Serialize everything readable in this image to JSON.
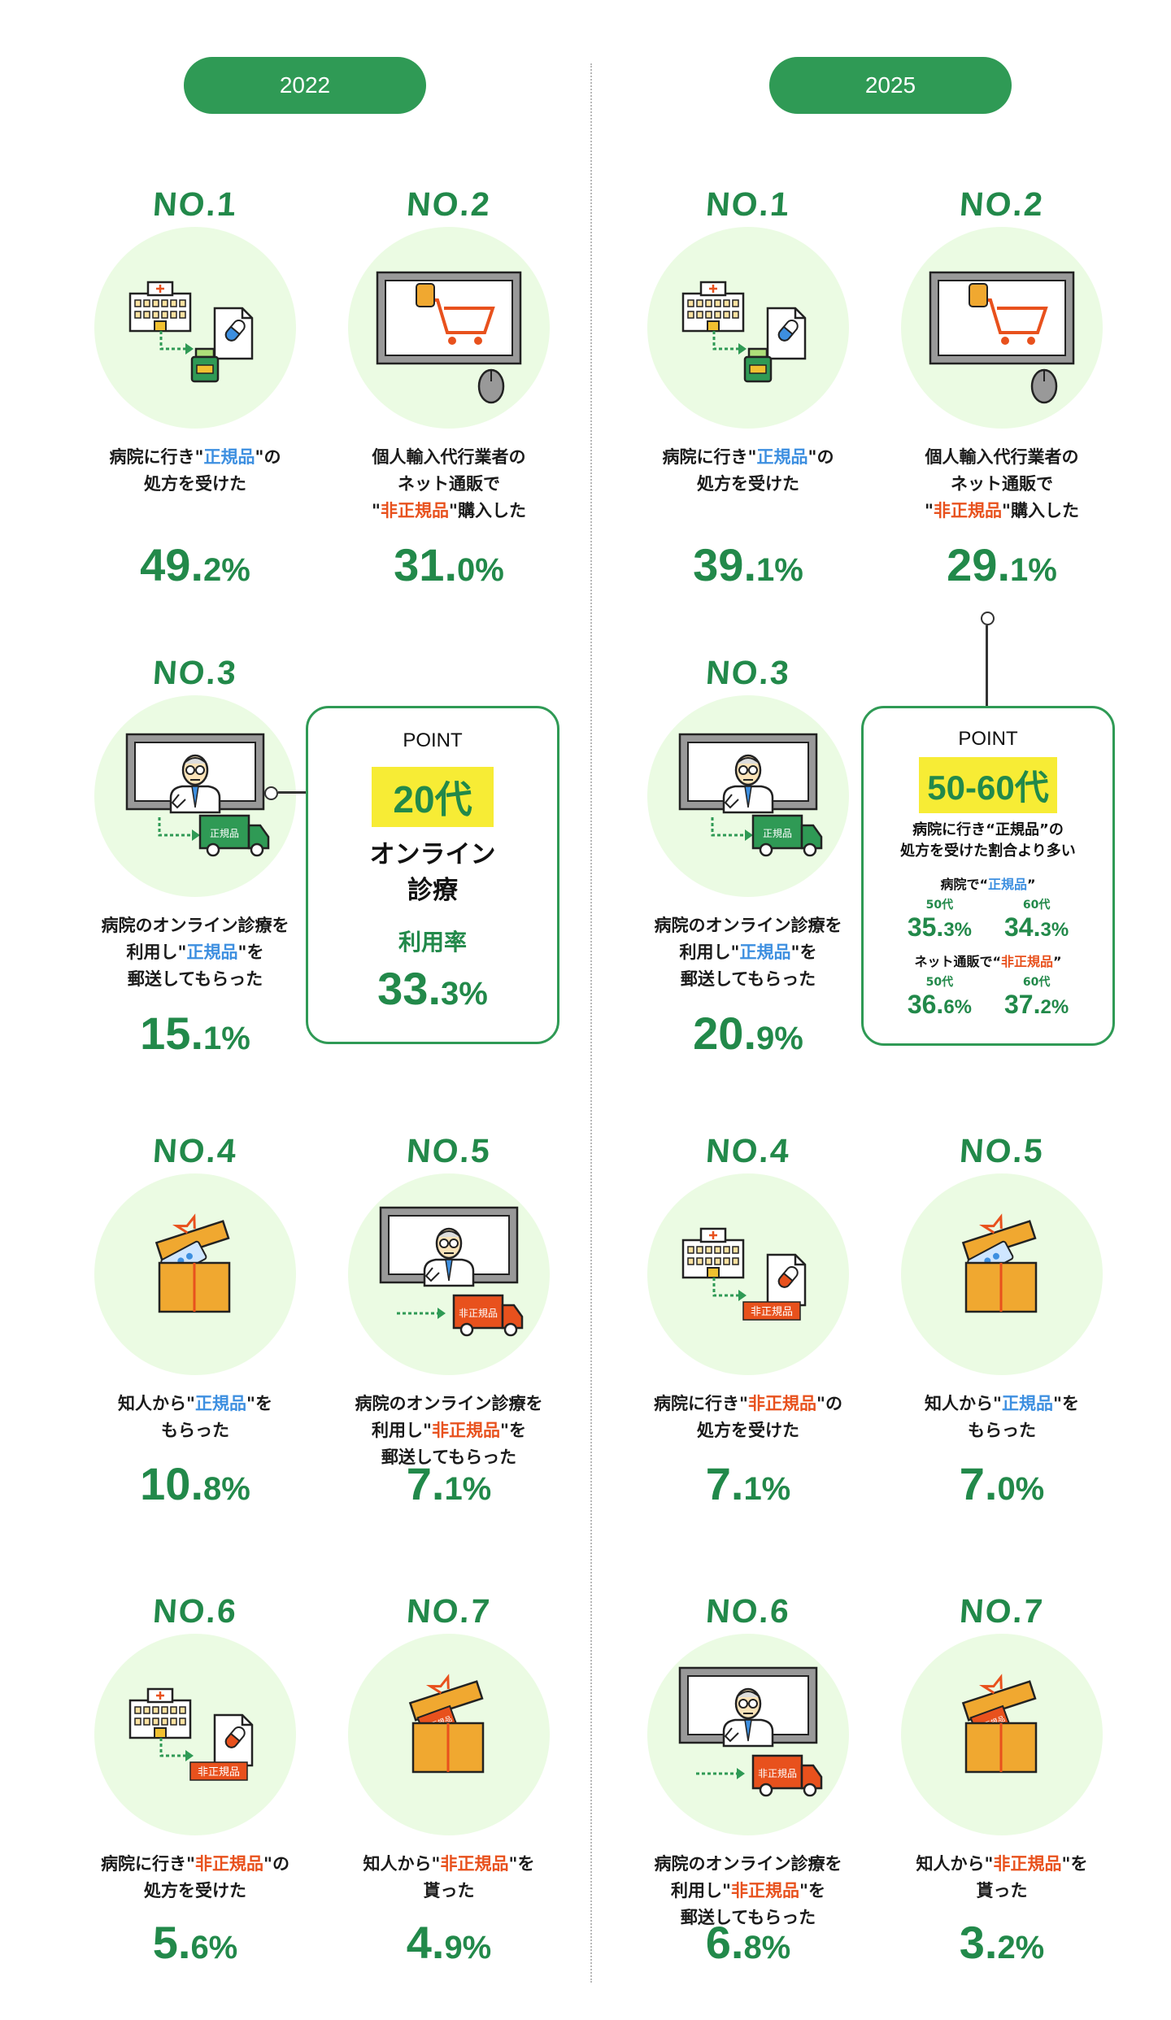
{
  "years": {
    "left": "2022",
    "right": "2025"
  },
  "left": {
    "items": [
      {
        "rank": "NO.1",
        "icon": "hospital-prescription-icon",
        "desc": [
          "病院に行き\"",
          {
            "t": "正規品",
            "c": "blue"
          },
          "\"の",
          "\n",
          "処方を受けた"
        ],
        "value_int": "49.",
        "value_dec": "2%"
      },
      {
        "rank": "NO.2",
        "icon": "monitor-cart-icon",
        "desc": [
          "個人輸入代行業者の",
          "\n",
          "ネット通販で",
          "\n",
          "\"",
          {
            "t": "非正規品",
            "c": "red"
          },
          "\"購入した"
        ],
        "value_int": "31.",
        "value_dec": "0%"
      },
      {
        "rank": "NO.3",
        "icon": "online-doctor-genuine-icon",
        "desc": [
          "病院のオンライン診療を",
          "\n",
          "利用し\"",
          {
            "t": "正規品",
            "c": "blue"
          },
          "\"を",
          "\n",
          "郵送してもらった"
        ],
        "value_int": "15.",
        "value_dec": "1%"
      },
      {
        "rank": "NO.4",
        "icon": "gift-box-icon",
        "desc": [
          "知人から\"",
          {
            "t": "正規品",
            "c": "blue"
          },
          "\"を",
          "\n",
          "もらった"
        ],
        "value_int": "10.",
        "value_dec": "8%"
      },
      {
        "rank": "NO.5",
        "icon": "online-doctor-nongenuine-icon",
        "desc": [
          "病院のオンライン診療を",
          "\n",
          "利用し\"",
          {
            "t": "非正規品",
            "c": "red"
          },
          "\"を",
          "\n",
          "郵送してもらった"
        ],
        "value_int": "7.",
        "value_dec": "1%"
      },
      {
        "rank": "NO.6",
        "icon": "hospital-nongenuine-icon",
        "desc": [
          "病院に行き\"",
          {
            "t": "非正規品",
            "c": "red"
          },
          "\"の",
          "\n",
          "処方を受けた"
        ],
        "value_int": "5.",
        "value_dec": "6%"
      },
      {
        "rank": "NO.7",
        "icon": "gift-nongenuine-icon",
        "desc": [
          "知人から\"",
          {
            "t": "非正規品",
            "c": "red"
          },
          "\"を",
          "\n",
          "貰った"
        ],
        "value_int": "4.",
        "value_dec": "9%"
      }
    ],
    "point": {
      "title": "POINT",
      "highlight": "20代",
      "line1": "オンライン",
      "line2": "診療",
      "rate_label": "利用率",
      "rate_int": "33.",
      "rate_dec": "3%"
    }
  },
  "right": {
    "items": [
      {
        "rank": "NO.1",
        "icon": "hospital-prescription-icon",
        "desc": [
          "病院に行き\"",
          {
            "t": "正規品",
            "c": "blue"
          },
          "\"の",
          "\n",
          "処方を受けた"
        ],
        "value_int": "39.",
        "value_dec": "1%"
      },
      {
        "rank": "NO.2",
        "icon": "monitor-cart-icon",
        "desc": [
          "個人輸入代行業者の",
          "\n",
          "ネット通販で",
          "\n",
          "\"",
          {
            "t": "非正規品",
            "c": "red"
          },
          "\"購入した"
        ],
        "value_int": "29.",
        "value_dec": "1%"
      },
      {
        "rank": "NO.3",
        "icon": "online-doctor-genuine-icon",
        "desc": [
          "病院のオンライン診療を",
          "\n",
          "利用し\"",
          {
            "t": "正規品",
            "c": "blue"
          },
          "\"を",
          "\n",
          "郵送してもらった"
        ],
        "value_int": "20.",
        "value_dec": "9%"
      },
      {
        "rank": "NO.4",
        "icon": "hospital-nongenuine-doc-icon",
        "desc": [
          "病院に行き\"",
          {
            "t": "非正規品",
            "c": "red"
          },
          "\"の",
          "\n",
          "処方を受けた"
        ],
        "value_int": "7.",
        "value_dec": "1%"
      },
      {
        "rank": "NO.5",
        "icon": "gift-box-icon",
        "desc": [
          "知人から\"",
          {
            "t": "正規品",
            "c": "blue"
          },
          "\"を",
          "\n",
          "もらった"
        ],
        "value_int": "7.",
        "value_dec": "0%"
      },
      {
        "rank": "NO.6",
        "icon": "online-doctor-nongenuine-icon",
        "desc": [
          "病院のオンライン診療を",
          "\n",
          "利用し\"",
          {
            "t": "非正規品",
            "c": "red"
          },
          "\"を",
          "\n",
          "郵送してもらった"
        ],
        "value_int": "6.",
        "value_dec": "8%"
      },
      {
        "rank": "NO.7",
        "icon": "gift-nongenuine-icon",
        "desc": [
          "知人から\"",
          {
            "t": "非正規品",
            "c": "red"
          },
          "\"を",
          "\n",
          "貰った"
        ],
        "value_int": "3.",
        "value_dec": "2%"
      }
    ],
    "point": {
      "title": "POINT",
      "highlight": "50-60代",
      "sub1": "病院に行き“正規品”の",
      "sub2": "処方を受けた割合より多い",
      "genuine_label": [
        "病院で“",
        {
          "t": "正規品",
          "c": "blue"
        },
        "”"
      ],
      "nongenuine_label": [
        "ネット通販で“",
        {
          "t": "非正規品",
          "c": "red"
        },
        "”"
      ],
      "age_50": "50代",
      "age_60": "60代",
      "g50_int": "35.",
      "g50_dec": "3%",
      "g60_int": "34.",
      "g60_dec": "3%",
      "n50_int": "36.",
      "n50_dec": "6%",
      "n60_int": "37.",
      "n60_dec": "2%"
    }
  },
  "labels": {
    "genuine_box": "正規品",
    "nongenuine_box": "非正規品"
  },
  "colors": {
    "green": "#2f9a55",
    "value_green": "#22894a",
    "blue": "#3d8fe0",
    "red": "#e8511d",
    "highlight": "#f7ec35",
    "circle": "#ebfbe3",
    "gift": "#f0a830"
  }
}
